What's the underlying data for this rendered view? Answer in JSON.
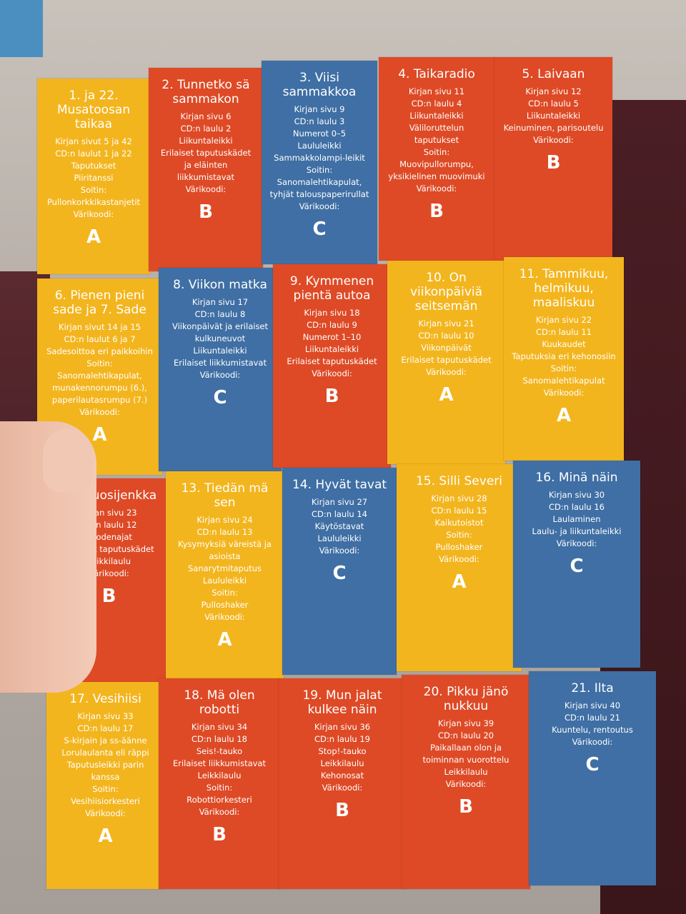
{
  "photo": {
    "cards": [
      {
        "id": "c1",
        "color": "y",
        "title": "1. ja 22. Musatoosan taikaa",
        "lines": [
          "Kirjan sivut 5 ja 42",
          "CD:n laulut 1 ja 22",
          "Taputukset",
          "Piiritanssi",
          "Soitin:",
          "Pullonkorkkikastanjetit",
          "Värikoodi:"
        ],
        "code": "A"
      },
      {
        "id": "c2",
        "color": "r",
        "title": "2. Tunnetko sä sammakon",
        "lines": [
          "Kirjan sivu 6",
          "CD:n laulu 2",
          "Liikuntaleikki",
          "Erilaiset taputuskädet ja eläinten liikkumistavat",
          "Värikoodi:"
        ],
        "code": "B"
      },
      {
        "id": "c3",
        "color": "b",
        "title": "3. Viisi sammakkoa",
        "lines": [
          "Kirjan sivu 9",
          "CD:n laulu 3",
          "Numerot 0–5",
          "Laululeikki",
          "Sammakkolampi-leikit",
          "Soitin:",
          "Sanomalehtikapulat, tyhjät talouspaperirullat",
          "Värikoodi:"
        ],
        "code": "C"
      },
      {
        "id": "c4",
        "color": "r",
        "title": "4. Taikaradio",
        "lines": [
          "Kirjan sivu 11",
          "CD:n laulu 4",
          "Liikuntaleikki",
          "Väliloruttelun taputukset",
          "Soitin:",
          "Muovipullorumpu, yksikielinen muovimuki",
          "Värikoodi:"
        ],
        "code": "B"
      },
      {
        "id": "c5",
        "color": "r",
        "title": "5. Laivaan",
        "lines": [
          "Kirjan sivu 12",
          "CD:n laulu 5",
          "Liikuntaleikki",
          "Keinuminen, parisoutelu",
          "Värikoodi:"
        ],
        "code": "B"
      },
      {
        "id": "c6",
        "color": "y",
        "title": "6. Pienen pieni sade ja 7. Sade",
        "lines": [
          "Kirjan sivut 14 ja 15",
          "CD:n laulut 6 ja 7",
          "Sadesoittoa eri paikkoihin",
          "Soitin:",
          "Sanomalehtikapulat, munakennorumpu (6.), paperilautasrumpu (7.)",
          "Värikoodi:"
        ],
        "code": "A"
      },
      {
        "id": "c7",
        "color": "b",
        "title": "8. Viikon matka",
        "lines": [
          "Kirjan sivu 17",
          "CD:n laulu 8",
          "Viikonpäivät ja erilaiset kulkuneuvot",
          "Liikuntaleikki",
          "Erilaiset liikkumistavat",
          "Värikoodi:"
        ],
        "code": "C"
      },
      {
        "id": "c8",
        "color": "r",
        "title": "9. Kymmenen pientä autoa",
        "lines": [
          "Kirjan sivu 18",
          "CD:n laulu 9",
          "Numerot 1–10",
          "Liikuntaleikki",
          "Erilaiset taputuskädet",
          "Värikoodi:"
        ],
        "code": "B"
      },
      {
        "id": "c9",
        "color": "y",
        "title": "10. On viikonpäiviä seitsemän",
        "lines": [
          "Kirjan sivu 21",
          "CD:n laulu 10",
          "Viikonpäivät",
          "Erilaiset taputuskädet",
          "Värikoodi:"
        ],
        "code": "A"
      },
      {
        "id": "c10",
        "color": "y",
        "title": "11. Tammikuu, helmikuu, maaliskuu",
        "lines": [
          "Kirjan sivu 22",
          "CD:n laulu 11",
          "Kuukaudet",
          "Taputuksia eri kehonosiin",
          "Soitin:",
          "Sanomalehtikapulat",
          "Värikoodi:"
        ],
        "code": "A"
      },
      {
        "id": "c11",
        "color": "r",
        "title": "12. Vuosijenkka",
        "lines": [
          "Kirjan sivu 23",
          "CD:n laulu 12",
          "Vuodenajat",
          "Erilaiset taputuskädet",
          "Leikkilaulu",
          "Värikoodi:"
        ],
        "code": "B"
      },
      {
        "id": "c12",
        "color": "y",
        "title": "13. Tiedän mä sen",
        "lines": [
          "Kirjan sivu 24",
          "CD:n laulu 13",
          "Kysymyksiä väreistä ja asioista",
          "Sanarytmitaputus",
          "Laululeikki",
          "Soitin:",
          "Pulloshaker",
          "Värikoodi:"
        ],
        "code": "A"
      },
      {
        "id": "c13",
        "color": "b",
        "title": "14. Hyvät tavat",
        "lines": [
          "Kirjan sivu 27",
          "CD:n laulu 14",
          "Käytöstavat",
          "Laululeikki",
          "Värikoodi:"
        ],
        "code": "C"
      },
      {
        "id": "c14",
        "color": "y",
        "title": "15. Silli Severi",
        "lines": [
          "Kirjan sivu 28",
          "CD:n laulu 15",
          "Kaikutoistot",
          "Soitin:",
          "Pulloshaker",
          "Värikoodi:"
        ],
        "code": "A"
      },
      {
        "id": "c15",
        "color": "b",
        "title": "16. Minä näin",
        "lines": [
          "Kirjan sivu 30",
          "CD:n laulu 16",
          "Laulaminen",
          "Laulu- ja liikuntaleikki",
          "Värikoodi:"
        ],
        "code": "C"
      },
      {
        "id": "c16",
        "color": "y",
        "title": "17. Vesihiisi",
        "lines": [
          "Kirjan sivu 33",
          "CD:n laulu 17",
          "S-kirjain ja ss-äänne",
          "Lorulaulanta eli räppi",
          "Taputusleikki parin kanssa",
          "Soitin:",
          "Vesihiisiorkesteri",
          "Värikoodi:"
        ],
        "code": "A"
      },
      {
        "id": "c17",
        "color": "r",
        "title": "18. Mä olen robotti",
        "lines": [
          "Kirjan sivu 34",
          "CD:n laulu 18",
          "Seis!-tauko",
          "Erilaiset liikkumistavat",
          "Leikkilaulu",
          "Soitin:",
          "Robottiorkesteri",
          "Värikoodi:"
        ],
        "code": "B"
      },
      {
        "id": "c18",
        "color": "r",
        "title": "19. Mun jalat kulkee näin",
        "lines": [
          "Kirjan sivu 36",
          "CD:n laulu 19",
          "Stop!-tauko",
          "Leikkilaulu",
          "Kehonosat",
          "Värikoodi:"
        ],
        "code": "B"
      },
      {
        "id": "c19",
        "color": "r",
        "title": "20. Pikku jänö nukkuu",
        "lines": [
          "Kirjan sivu 39",
          "CD:n laulu 20",
          "Paikallaan olon ja toiminnan vuorottelu",
          "Leikkilaulu",
          "Värikoodi:"
        ],
        "code": "B"
      },
      {
        "id": "c20",
        "color": "b",
        "title": "21. Ilta",
        "lines": [
          "Kirjan sivu 40",
          "CD:n laulu 21",
          "Kuuntelu, rentoutus",
          "Värikoodi:"
        ],
        "code": "C"
      }
    ]
  }
}
